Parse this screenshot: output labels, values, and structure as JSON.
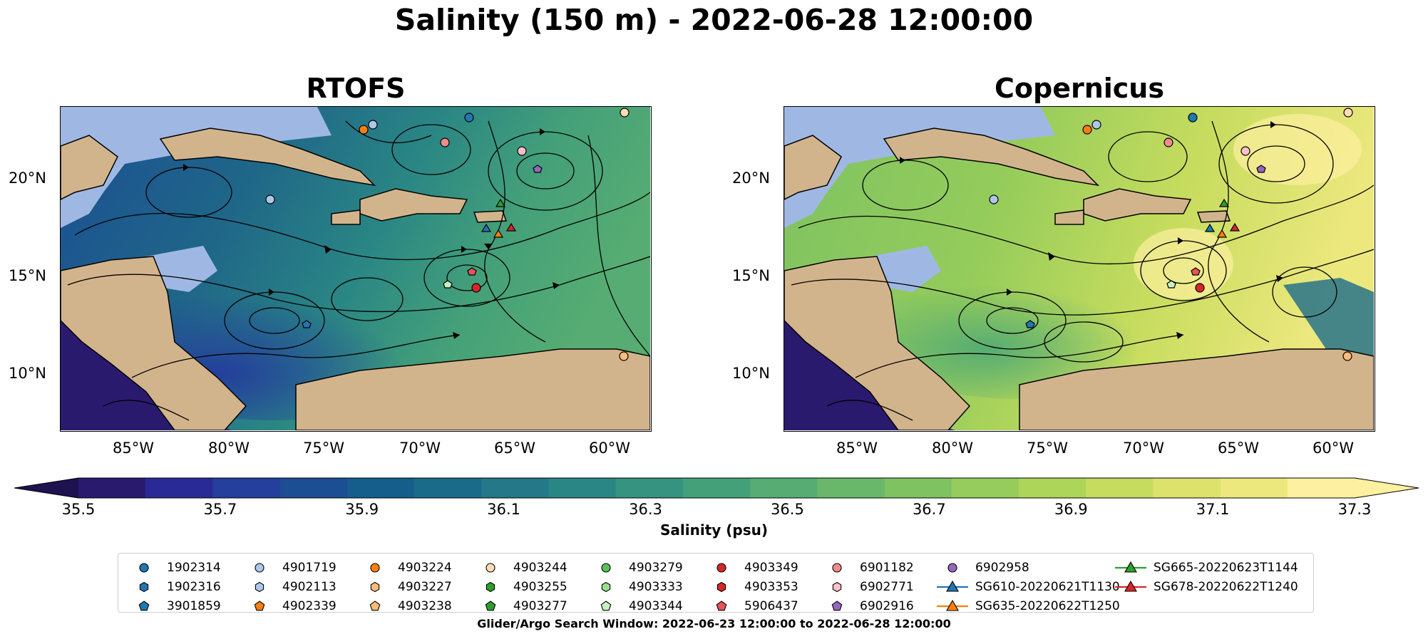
{
  "suptitle": "Salinity (150 m) - 2022-06-28 12:00:00",
  "panels": [
    {
      "title": "RTOFS"
    },
    {
      "title": "Copernicus"
    }
  ],
  "axes": {
    "x_ticks": [
      "85°W",
      "80°W",
      "75°W",
      "70°W",
      "65°W",
      "60°W"
    ],
    "y_ticks": [
      "20°N",
      "15°N",
      "10°N"
    ],
    "lon_range": [
      -89,
      -58
    ],
    "lat_range": [
      7,
      24
    ]
  },
  "colorbar": {
    "label": "Salinity (psu)",
    "ticks": [
      "35.5",
      "35.7",
      "35.9",
      "36.1",
      "36.3",
      "36.5",
      "36.7",
      "36.9",
      "37.1",
      "37.3"
    ],
    "range": [
      35.5,
      37.3
    ],
    "colors": [
      "#2a1a6e",
      "#2a2a96",
      "#243f9c",
      "#1b4e92",
      "#155e8c",
      "#1a6b8a",
      "#237987",
      "#2a8684",
      "#35937f",
      "#44a079",
      "#56ac72",
      "#69b76a",
      "#7ec262",
      "#95cc5b",
      "#adD55a",
      "#c6dc5e",
      "#dce26b",
      "#ede87e",
      "#fdf0a0"
    ]
  },
  "colors": {
    "land": "#d2b48c",
    "shelf": "#9fb8e3"
  },
  "legend": [
    {
      "label": "1902314",
      "marker": "circle",
      "color": "#1f77b4"
    },
    {
      "label": "1902316",
      "marker": "hexagon",
      "color": "#1f77b4"
    },
    {
      "label": "3901859",
      "marker": "pentagon",
      "color": "#1f77b4"
    },
    {
      "label": "4901719",
      "marker": "circle",
      "color": "#aec7e8"
    },
    {
      "label": "4902113",
      "marker": "hexagon",
      "color": "#aec7e8"
    },
    {
      "label": "4902339",
      "marker": "pentagon",
      "color": "#ff7f0e"
    },
    {
      "label": "4903224",
      "marker": "circle",
      "color": "#ff7f0e"
    },
    {
      "label": "4903227",
      "marker": "hexagon",
      "color": "#ffbb78"
    },
    {
      "label": "4903238",
      "marker": "pentagon",
      "color": "#ffbb78"
    },
    {
      "label": "4903244",
      "marker": "circle",
      "color": "#ffdcb8"
    },
    {
      "label": "4903255",
      "marker": "hexagon",
      "color": "#2ca02c"
    },
    {
      "label": "4903277",
      "marker": "pentagon",
      "color": "#2ca02c"
    },
    {
      "label": "4903279",
      "marker": "circle",
      "color": "#5cbf5c"
    },
    {
      "label": "4903333",
      "marker": "hexagon",
      "color": "#98df8a"
    },
    {
      "label": "4903344",
      "marker": "pentagon",
      "color": "#c8f0c0"
    },
    {
      "label": "4903349",
      "marker": "circle",
      "color": "#d62728"
    },
    {
      "label": "4903353",
      "marker": "hexagon",
      "color": "#d62728"
    },
    {
      "label": "5906437",
      "marker": "pentagon",
      "color": "#e8525a"
    },
    {
      "label": "6901182",
      "marker": "circle",
      "color": "#f08c8c"
    },
    {
      "label": "6902771",
      "marker": "hexagon",
      "color": "#ffc0cb"
    },
    {
      "label": "6902916",
      "marker": "pentagon",
      "color": "#9467bd"
    },
    {
      "label": "6902958",
      "marker": "circle",
      "color": "#9467bd"
    },
    {
      "label": "SG610-20220621T1130",
      "marker": "triangle-line",
      "color": "#1f77b4"
    },
    {
      "label": "SG635-20220622T1250",
      "marker": "triangle-line",
      "color": "#ff7f0e"
    },
    {
      "label": "SG665-20220623T1144",
      "marker": "triangle-line",
      "color": "#2ca02c"
    },
    {
      "label": "SG678-20220622T1240",
      "marker": "triangle-line",
      "color": "#d62728"
    }
  ],
  "footer": "Glider/Argo Search Window: 2022-06-23 12:00:00 to 2022-06-28 12:00:00"
}
